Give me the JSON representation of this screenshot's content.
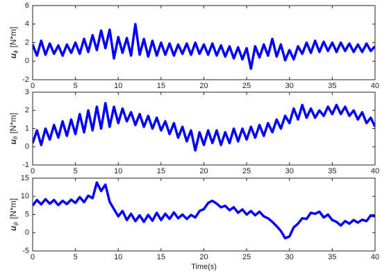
{
  "chart_data": [
    {
      "type": "line",
      "ylabel_symbol": "u",
      "ylabel_subscript": "ϕ",
      "ylabel_unit": "[N*m]",
      "x": [
        0,
        0.5,
        1,
        1.5,
        2,
        2.5,
        3,
        3.5,
        4,
        4.5,
        5,
        5.5,
        6,
        6.5,
        7,
        7.5,
        8,
        8.5,
        9,
        9.5,
        10,
        10.5,
        11,
        11.5,
        12,
        12.5,
        13,
        13.5,
        14,
        14.5,
        15,
        15.5,
        16,
        16.5,
        17,
        17.5,
        18,
        18.5,
        19,
        19.5,
        20,
        20.5,
        21,
        21.5,
        22,
        22.5,
        23,
        23.5,
        24,
        24.5,
        25,
        25.5,
        26,
        26.5,
        27,
        27.5,
        28,
        28.5,
        29,
        29.5,
        30,
        30.5,
        31,
        31.5,
        32,
        32.5,
        33,
        33.5,
        34,
        34.5,
        35,
        35.5,
        36,
        36.5,
        37,
        37.5,
        38,
        38.5,
        39,
        39.5,
        40
      ],
      "series": [
        {
          "color": "#0000ff",
          "values": [
            1.8,
            0.6,
            2.2,
            0.7,
            1.9,
            0.8,
            1.7,
            0.6,
            1.8,
            0.9,
            2.0,
            0.8,
            2.4,
            1.0,
            2.8,
            1.2,
            3.3,
            1.4,
            3.4,
            0.3,
            2.6,
            0.9,
            2.5,
            0.6,
            4.0,
            0.7,
            2.4,
            0.5,
            2.2,
            0.6,
            2.0,
            0.7,
            1.9,
            0.6,
            1.8,
            0.8,
            1.9,
            0.7,
            2.0,
            0.8,
            1.8,
            0.7,
            1.9,
            0.6,
            1.7,
            0.5,
            1.6,
            0.3,
            1.5,
            0.2,
            1.4,
            -0.8,
            1.6,
            0.4,
            1.8,
            0.6,
            2.4,
            0.5,
            1.8,
            0.1,
            1.2,
            0.2,
            1.6,
            0.8,
            2.0,
            0.9,
            2.2,
            1.0,
            2.1,
            1.1,
            2.0,
            1.0,
            2.0,
            1.1,
            1.9,
            1.0,
            1.8,
            1.0,
            1.9,
            1.1,
            1.6
          ]
        }
      ],
      "xlim": [
        0,
        40
      ],
      "xticks": [
        0,
        5,
        10,
        15,
        20,
        25,
        30,
        35,
        40
      ],
      "ylim": [
        -2,
        6
      ],
      "yticks": [
        -2,
        0,
        2,
        4,
        6
      ]
    },
    {
      "type": "line",
      "ylabel_symbol": "u",
      "ylabel_subscript": "θ",
      "ylabel_unit": "[N*m]",
      "x": [
        0,
        0.5,
        1,
        1.5,
        2,
        2.5,
        3,
        3.5,
        4,
        4.5,
        5,
        5.5,
        6,
        6.5,
        7,
        7.5,
        8,
        8.5,
        9,
        9.5,
        10,
        10.5,
        11,
        11.5,
        12,
        12.5,
        13,
        13.5,
        14,
        14.5,
        15,
        15.5,
        16,
        16.5,
        17,
        17.5,
        18,
        18.5,
        19,
        19.5,
        20,
        20.5,
        21,
        21.5,
        22,
        22.5,
        23,
        23.5,
        24,
        24.5,
        25,
        25.5,
        26,
        26.5,
        27,
        27.5,
        28,
        28.5,
        29,
        29.5,
        30,
        30.5,
        31,
        31.5,
        32,
        32.5,
        33,
        33.5,
        34,
        34.5,
        35,
        35.5,
        36,
        36.5,
        37,
        37.5,
        38,
        38.5,
        39,
        39.5,
        40
      ],
      "series": [
        {
          "color": "#0000ff",
          "values": [
            0.2,
            0.9,
            0.1,
            1.0,
            0.4,
            1.2,
            0.5,
            1.4,
            0.6,
            1.5,
            0.7,
            1.8,
            0.8,
            2.0,
            0.9,
            2.2,
            1.0,
            2.4,
            1.1,
            2.2,
            1.3,
            2.1,
            1.4,
            1.9,
            1.2,
            1.8,
            1.1,
            1.7,
            1.0,
            1.6,
            0.9,
            1.4,
            0.7,
            1.3,
            0.5,
            1.1,
            0.3,
            0.9,
            -0.2,
            0.8,
            0.1,
            0.9,
            0.2,
            0.9,
            0.1,
            0.8,
            0.2,
            1.0,
            0.3,
            1.0,
            0.4,
            1.1,
            0.5,
            1.2,
            0.6,
            1.3,
            0.8,
            1.5,
            1.0,
            1.7,
            1.3,
            2.1,
            1.5,
            2.3,
            1.6,
            2.1,
            1.6,
            2.0,
            1.7,
            2.2,
            1.8,
            2.3,
            1.8,
            2.2,
            1.7,
            2.0,
            1.5,
            1.9,
            1.3,
            1.6,
            1.1
          ]
        }
      ],
      "xlim": [
        0,
        40
      ],
      "xticks": [
        0,
        5,
        10,
        15,
        20,
        25,
        30,
        35,
        40
      ],
      "ylim": [
        -1,
        3
      ],
      "yticks": [
        -1,
        0,
        1,
        2,
        3
      ]
    },
    {
      "type": "line",
      "ylabel_symbol": "u",
      "ylabel_subscript": "ψ",
      "ylabel_unit": "[N*m]",
      "xlabel": "Time(s)",
      "x": [
        0,
        0.5,
        1,
        1.5,
        2,
        2.5,
        3,
        3.5,
        4,
        4.5,
        5,
        5.5,
        6,
        6.5,
        7,
        7.5,
        8,
        8.5,
        9,
        9.5,
        10,
        10.5,
        11,
        11.5,
        12,
        12.5,
        13,
        13.5,
        14,
        14.5,
        15,
        15.5,
        16,
        16.5,
        17,
        17.5,
        18,
        18.5,
        19,
        19.5,
        20,
        20.5,
        21,
        21.5,
        22,
        22.5,
        23,
        23.5,
        24,
        24.5,
        25,
        25.5,
        26,
        26.5,
        27,
        27.5,
        28,
        28.5,
        29,
        29.5,
        30,
        30.5,
        31,
        31.5,
        32,
        32.5,
        33,
        33.5,
        34,
        34.5,
        35,
        35.5,
        36,
        36.5,
        37,
        37.5,
        38,
        38.5,
        39,
        39.5,
        40
      ],
      "series": [
        {
          "color": "#0000ff",
          "values": [
            7.5,
            9.0,
            7.8,
            9.2,
            8.0,
            9.0,
            7.6,
            8.8,
            7.9,
            9.1,
            8.2,
            9.8,
            8.4,
            10.2,
            9.5,
            13.8,
            11.5,
            13.2,
            8.5,
            6.5,
            4.5,
            6.0,
            3.5,
            5.2,
            3.2,
            4.8,
            3.0,
            4.9,
            3.3,
            5.5,
            3.5,
            5.2,
            3.8,
            5.6,
            4.0,
            5.0,
            3.8,
            4.9,
            4.2,
            6.0,
            6.5,
            8.2,
            8.8,
            8.0,
            7.0,
            7.4,
            6.2,
            7.0,
            5.5,
            6.4,
            5.0,
            6.0,
            4.8,
            5.8,
            4.5,
            4.0,
            3.0,
            1.8,
            0.5,
            -1.5,
            -1.0,
            1.5,
            2.5,
            4.0,
            3.8,
            5.5,
            5.2,
            5.8,
            4.2,
            5.0,
            3.5,
            3.0,
            2.0,
            3.2,
            2.5,
            3.5,
            2.8,
            3.6,
            3.2,
            4.8,
            4.5
          ]
        }
      ],
      "xlim": [
        0,
        40
      ],
      "xticks": [
        0,
        5,
        10,
        15,
        20,
        25,
        30,
        35,
        40
      ],
      "ylim": [
        -5,
        15
      ],
      "yticks": [
        -5,
        0,
        5,
        10,
        15
      ]
    }
  ]
}
